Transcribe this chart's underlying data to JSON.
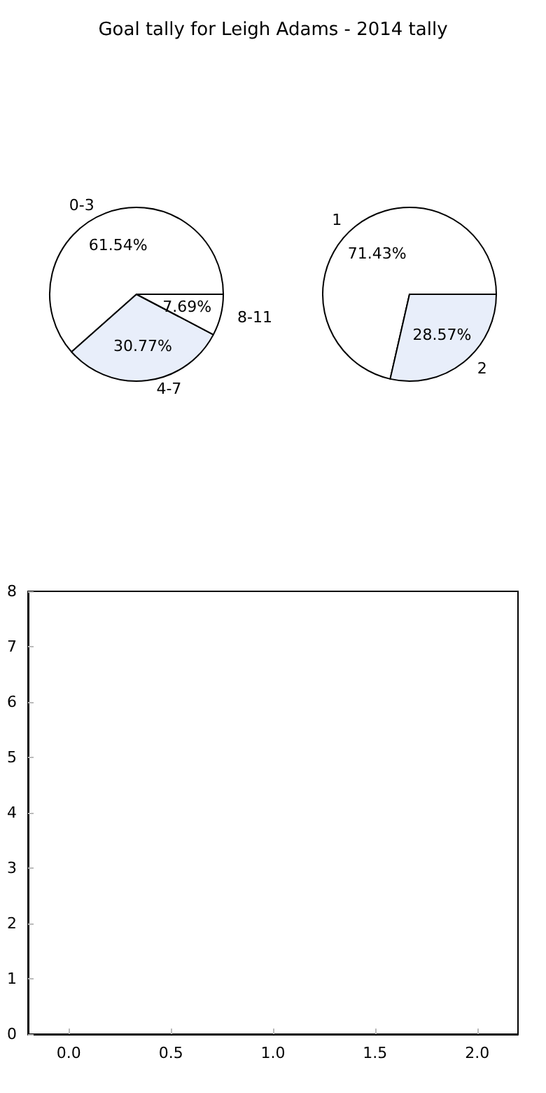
{
  "chart_data": [
    {
      "type": "pie",
      "title": "Goal tally for Leigh Adams - 2014 tally",
      "legend": false,
      "categories": [
        "0-3",
        "4-7",
        "8-11"
      ],
      "values": [
        61.54,
        30.77,
        7.69
      ],
      "colors": [
        "#ffffff",
        "#e8eefa",
        "#ffffff"
      ],
      "value_labels": [
        "61.54%",
        "30.77%",
        "7.69%"
      ]
    },
    {
      "type": "pie",
      "legend": false,
      "categories": [
        "1",
        "2"
      ],
      "values": [
        71.43,
        28.57
      ],
      "colors": [
        "#ffffff",
        "#e8eefa"
      ],
      "value_labels": [
        "71.43%",
        "28.57%"
      ]
    },
    {
      "type": "scatter",
      "xlim": [
        -0.2,
        2.2
      ],
      "ylim": [
        0,
        8
      ],
      "xticks": [
        {
          "value": 0,
          "label": "0.0"
        },
        {
          "value": 0.5,
          "label": "0.5"
        },
        {
          "value": 1,
          "label": "1.0"
        },
        {
          "value": 1.5,
          "label": "1.5"
        },
        {
          "value": 2,
          "label": "2.0"
        }
      ],
      "yticks": [
        0,
        1,
        2,
        3,
        4,
        5,
        6,
        7,
        8
      ],
      "grid": false
    }
  ]
}
